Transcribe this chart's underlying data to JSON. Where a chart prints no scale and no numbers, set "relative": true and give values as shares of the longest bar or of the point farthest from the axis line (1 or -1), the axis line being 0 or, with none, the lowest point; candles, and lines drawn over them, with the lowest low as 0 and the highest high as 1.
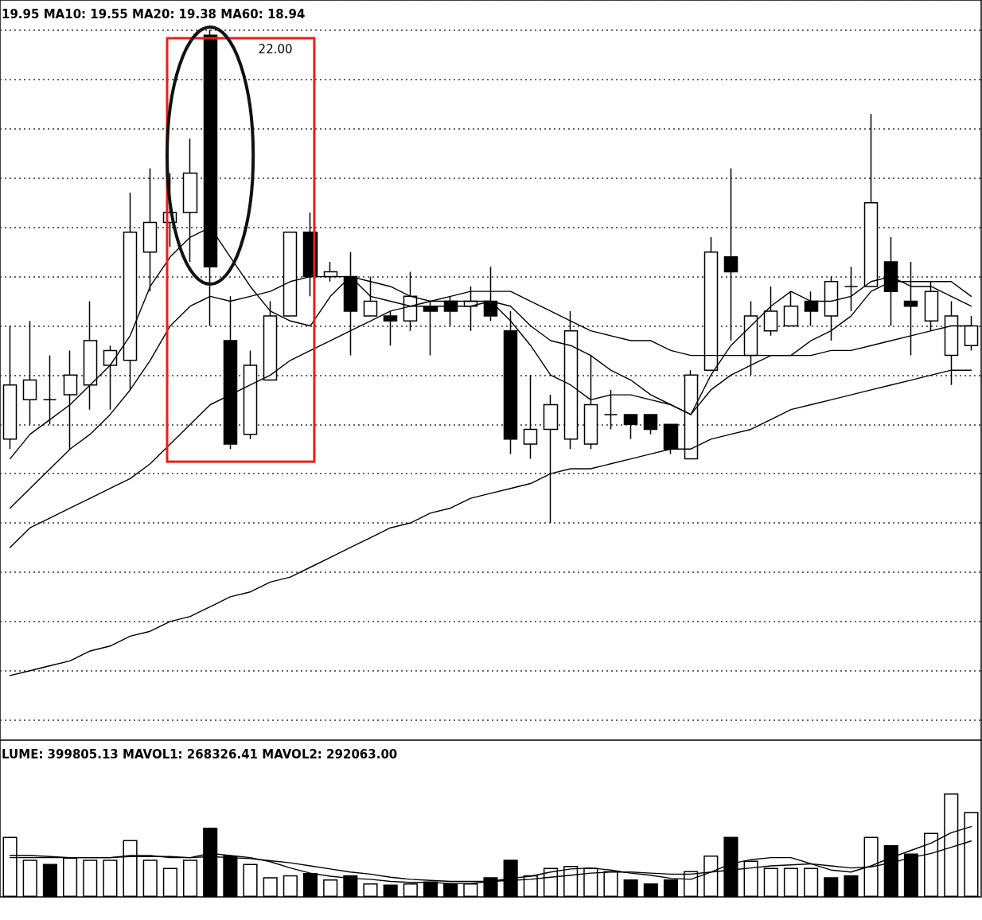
{
  "chart_data": [
    {
      "type": "candlestick",
      "relative": true,
      "grid": "y",
      "tick_labels": false,
      "categories": [
        null,
        null,
        null,
        null,
        null,
        null,
        null,
        null,
        null,
        null,
        null,
        null,
        null,
        null,
        null,
        null,
        null,
        null,
        null,
        null,
        null,
        null,
        null,
        null,
        null,
        null,
        null,
        null,
        null,
        null,
        null,
        null,
        null,
        null,
        null,
        null,
        null,
        null,
        null,
        null,
        null,
        null,
        null,
        null,
        null,
        null,
        null,
        null,
        null
      ],
      "ohlc": [
        [
          0.17,
          0.4,
          0.15,
          0.28
        ],
        [
          0.25,
          0.41,
          0.2,
          0.29
        ],
        [
          0.25,
          0.34,
          0.2,
          0.25
        ],
        [
          0.26,
          0.35,
          0.15,
          0.3
        ],
        [
          0.28,
          0.45,
          0.23,
          0.37
        ],
        [
          0.32,
          0.36,
          0.23,
          0.35
        ],
        [
          0.33,
          0.67,
          0.27,
          0.59
        ],
        [
          0.55,
          0.72,
          0.47,
          0.61
        ],
        [
          0.61,
          0.71,
          0.56,
          0.63
        ],
        [
          0.63,
          0.78,
          0.53,
          0.71
        ],
        [
          0.99,
          1,
          0.4,
          0.52
        ],
        [
          0.37,
          0.46,
          0.15,
          0.16
        ],
        [
          0.18,
          0.35,
          0.17,
          0.32
        ],
        [
          0.29,
          0.45,
          0.29,
          0.42
        ],
        [
          0.42,
          0.59,
          0.42,
          0.59
        ],
        [
          0.59,
          0.63,
          0.46,
          0.5
        ],
        [
          0.5,
          0.53,
          0.49,
          0.51
        ],
        [
          0.5,
          0.55,
          0.34,
          0.43
        ],
        [
          0.42,
          0.5,
          0.42,
          0.45
        ],
        [
          0.42,
          0.43,
          0.36,
          0.41
        ],
        [
          0.41,
          0.51,
          0.39,
          0.46
        ],
        [
          0.44,
          0.45,
          0.34,
          0.43
        ],
        [
          0.45,
          0.46,
          0.4,
          0.43
        ],
        [
          0.44,
          0.48,
          0.39,
          0.45
        ],
        [
          0.45,
          0.52,
          0.41,
          0.42
        ],
        [
          0.39,
          0.43,
          0.14,
          0.17
        ],
        [
          0.16,
          0.3,
          0.13,
          0.19
        ],
        [
          0.19,
          0.26,
          0,
          0.24
        ],
        [
          0.17,
          0.43,
          0.15,
          0.39
        ],
        [
          0.16,
          0.34,
          0.15,
          0.24
        ],
        [
          0.22,
          0.27,
          0.19,
          0.22
        ],
        [
          0.22,
          0.22,
          0.17,
          0.2
        ],
        [
          0.22,
          0.22,
          0.18,
          0.19
        ],
        [
          0.2,
          0.2,
          0.14,
          0.15
        ],
        [
          0.13,
          0.31,
          0.13,
          0.3
        ],
        [
          0.31,
          0.58,
          0.31,
          0.55
        ],
        [
          0.54,
          0.72,
          0.37,
          0.51
        ],
        [
          0.34,
          0.45,
          0.3,
          0.42
        ],
        [
          0.39,
          0.48,
          0.38,
          0.43
        ],
        [
          0.4,
          0.47,
          0.4,
          0.44
        ],
        [
          0.45,
          0.47,
          0.4,
          0.43
        ],
        [
          0.42,
          0.5,
          0.37,
          0.49
        ],
        [
          0.48,
          0.52,
          0.43,
          0.48
        ],
        [
          0.48,
          0.83,
          0.48,
          0.65
        ],
        [
          0.53,
          0.58,
          0.4,
          0.47
        ],
        [
          0.45,
          0.53,
          0.34,
          0.44
        ],
        [
          0.41,
          0.49,
          0.39,
          0.47
        ],
        [
          0.34,
          0.45,
          0.28,
          0.42
        ],
        [
          0.36,
          0.42,
          0.35,
          0.4
        ]
      ],
      "series": [
        {
          "type": "line",
          "color": "#000000",
          "values": [
            0.13,
            0.18,
            0.21,
            0.24,
            0.28,
            0.32,
            0.38,
            0.48,
            0.54,
            0.58,
            0.6,
            0.54,
            0.48,
            0.43,
            0.41,
            0.4,
            0.46,
            0.5,
            0.46,
            0.45,
            0.44,
            0.44,
            0.44,
            0.44,
            0.45,
            0.41,
            0.36,
            0.3,
            0.28,
            0.25,
            0.26,
            0.26,
            0.25,
            0.24,
            0.22,
            0.3,
            0.36,
            0.4,
            0.44,
            0.47,
            0.45,
            0.45,
            0.46,
            0.49,
            0.5,
            0.48,
            0.48,
            0.46,
            0.44
          ]
        },
        {
          "type": "line",
          "color": "#000000",
          "values": [
            0.03,
            0.07,
            0.11,
            0.15,
            0.18,
            0.22,
            0.27,
            0.33,
            0.4,
            0.44,
            0.46,
            0.45,
            0.46,
            0.47,
            0.49,
            0.5,
            0.5,
            0.5,
            0.49,
            0.48,
            0.46,
            0.45,
            0.45,
            0.45,
            0.45,
            0.44,
            0.4,
            0.37,
            0.36,
            0.34,
            0.31,
            0.29,
            0.26,
            0.24,
            0.22,
            0.27,
            0.3,
            0.32,
            0.34,
            0.34,
            0.37,
            0.39,
            0.42,
            0.47,
            0.49,
            0.49,
            0.49,
            0.49,
            0.46
          ]
        },
        {
          "type": "line",
          "color": "#000000",
          "values": [
            -0.05,
            -0.01,
            0.01,
            0.03,
            0.05,
            0.07,
            0.09,
            0.12,
            0.16,
            0.2,
            0.24,
            0.26,
            0.28,
            0.3,
            0.33,
            0.35,
            0.37,
            0.39,
            0.41,
            0.43,
            0.44,
            0.45,
            0.46,
            0.47,
            0.47,
            0.47,
            0.45,
            0.43,
            0.41,
            0.39,
            0.38,
            0.37,
            0.37,
            0.35,
            0.34,
            0.34,
            0.34,
            0.34,
            0.34,
            0.34,
            0.34,
            0.35,
            0.35,
            0.36,
            0.37,
            0.38,
            0.39,
            0.4,
            0.4
          ]
        },
        {
          "type": "line",
          "color": "#000000",
          "values": [
            -0.31,
            -0.3,
            -0.29,
            -0.28,
            -0.26,
            -0.25,
            -0.23,
            -0.22,
            -0.2,
            -0.19,
            -0.17,
            -0.15,
            -0.14,
            -0.12,
            -0.11,
            -0.09,
            -0.07,
            -0.05,
            -0.03,
            -0.01,
            0.0,
            0.02,
            0.03,
            0.05,
            0.06,
            0.07,
            0.08,
            0.1,
            0.11,
            0.11,
            0.12,
            0.13,
            0.14,
            0.15,
            0.15,
            0.17,
            0.18,
            0.19,
            0.21,
            0.23,
            0.24,
            0.25,
            0.26,
            0.27,
            0.28,
            0.29,
            0.3,
            0.31,
            0.31
          ]
        }
      ],
      "annotations": [
        "19.95 MA10: 19.55 MA20: 19.38 MA60: 18.94",
        "22.00"
      ]
    },
    {
      "type": "bar",
      "relative": true,
      "tick_labels": false,
      "categories": [
        null,
        null,
        null,
        null,
        null,
        null,
        null,
        null,
        null,
        null,
        null,
        null,
        null,
        null,
        null,
        null,
        null,
        null,
        null,
        null,
        null,
        null,
        null,
        null,
        null,
        null,
        null,
        null,
        null,
        null,
        null,
        null,
        null,
        null,
        null,
        null,
        null,
        null,
        null,
        null,
        null,
        null,
        null,
        null,
        null,
        null,
        null,
        null,
        null
      ],
      "series": [
        {
          "type": "bar",
          "values": [
            0.58,
            0.36,
            0.32,
            0.38,
            0.36,
            0.36,
            0.55,
            0.36,
            0.28,
            0.36,
            0.67,
            0.4,
            0.32,
            0.19,
            0.21,
            0.23,
            0.17,
            0.21,
            0.13,
            0.12,
            0.13,
            0.15,
            0.13,
            0.13,
            0.19,
            0.36,
            0.21,
            0.28,
            0.3,
            0.28,
            0.25,
            0.17,
            0.13,
            0.17,
            0.25,
            0.4,
            0.58,
            0.35,
            0.28,
            0.28,
            0.28,
            0.19,
            0.21,
            0.58,
            0.5,
            0.42,
            0.62,
            1,
            0.82
          ],
          "colors": [
            "#ffffff",
            "#ffffff",
            "#000000",
            "#ffffff",
            "#ffffff",
            "#ffffff",
            "#ffffff",
            "#ffffff",
            "#ffffff",
            "#ffffff",
            "#000000",
            "#000000",
            "#ffffff",
            "#ffffff",
            "#ffffff",
            "#000000",
            "#ffffff",
            "#000000",
            "#ffffff",
            "#000000",
            "#ffffff",
            "#000000",
            "#000000",
            "#ffffff",
            "#000000",
            "#000000",
            "#ffffff",
            "#ffffff",
            "#ffffff",
            "#ffffff",
            "#ffffff",
            "#000000",
            "#000000",
            "#000000",
            "#ffffff",
            "#ffffff",
            "#000000",
            "#ffffff",
            "#ffffff",
            "#ffffff",
            "#ffffff",
            "#000000",
            "#000000",
            "#ffffff",
            "#000000",
            "#000000",
            "#ffffff",
            "#ffffff",
            "#ffffff"
          ]
        },
        {
          "type": "line",
          "color": "#000000",
          "values": [
            0.38,
            0.38,
            0.38,
            0.38,
            0.38,
            0.38,
            0.4,
            0.4,
            0.38,
            0.38,
            0.42,
            0.4,
            0.38,
            0.34,
            0.28,
            0.23,
            0.2,
            0.18,
            0.17,
            0.15,
            0.14,
            0.14,
            0.13,
            0.13,
            0.15,
            0.18,
            0.2,
            0.24,
            0.27,
            0.28,
            0.26,
            0.23,
            0.21,
            0.18,
            0.17,
            0.24,
            0.32,
            0.36,
            0.38,
            0.38,
            0.32,
            0.26,
            0.24,
            0.3,
            0.38,
            0.45,
            0.52,
            0.62,
            0.68
          ]
        },
        {
          "type": "line",
          "color": "#000000",
          "values": [
            0.4,
            0.4,
            0.39,
            0.38,
            0.38,
            0.38,
            0.39,
            0.39,
            0.39,
            0.38,
            0.39,
            0.38,
            0.37,
            0.35,
            0.33,
            0.3,
            0.27,
            0.24,
            0.22,
            0.19,
            0.17,
            0.16,
            0.15,
            0.15,
            0.15,
            0.16,
            0.17,
            0.19,
            0.21,
            0.23,
            0.24,
            0.24,
            0.23,
            0.22,
            0.22,
            0.24,
            0.26,
            0.28,
            0.3,
            0.31,
            0.32,
            0.3,
            0.28,
            0.29,
            0.33,
            0.38,
            0.42,
            0.48,
            0.54
          ]
        }
      ],
      "annotations": [
        "LUME: 399805.13 MAVOL1: 268326.41 MAVOL2: 292063.00"
      ]
    }
  ]
}
